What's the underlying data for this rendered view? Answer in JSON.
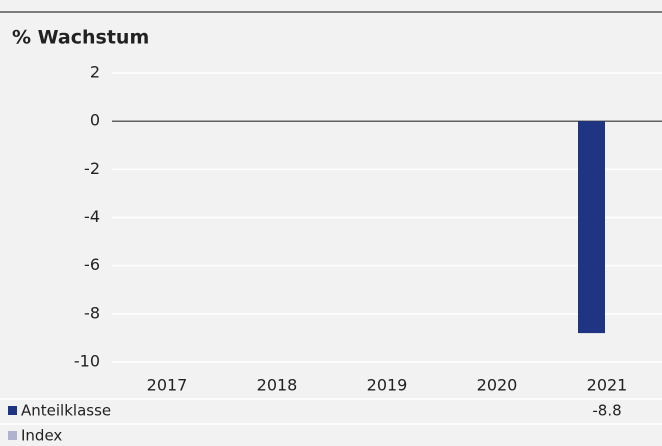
{
  "chart_data": {
    "type": "bar",
    "title": "% Wachstum",
    "categories": [
      "2017",
      "2018",
      "2019",
      "2020",
      "2021"
    ],
    "series": [
      {
        "name": "Anteilklasse",
        "color": "#1f3584",
        "values": [
          null,
          null,
          null,
          null,
          -8.8
        ]
      },
      {
        "name": "Index",
        "color": "#b0b3cf",
        "values": [
          null,
          null,
          null,
          null,
          null
        ]
      }
    ],
    "ylim": [
      -10,
      2
    ],
    "yticks": [
      -10,
      -8,
      -6,
      -4,
      -2,
      0,
      2
    ],
    "grid": true
  }
}
